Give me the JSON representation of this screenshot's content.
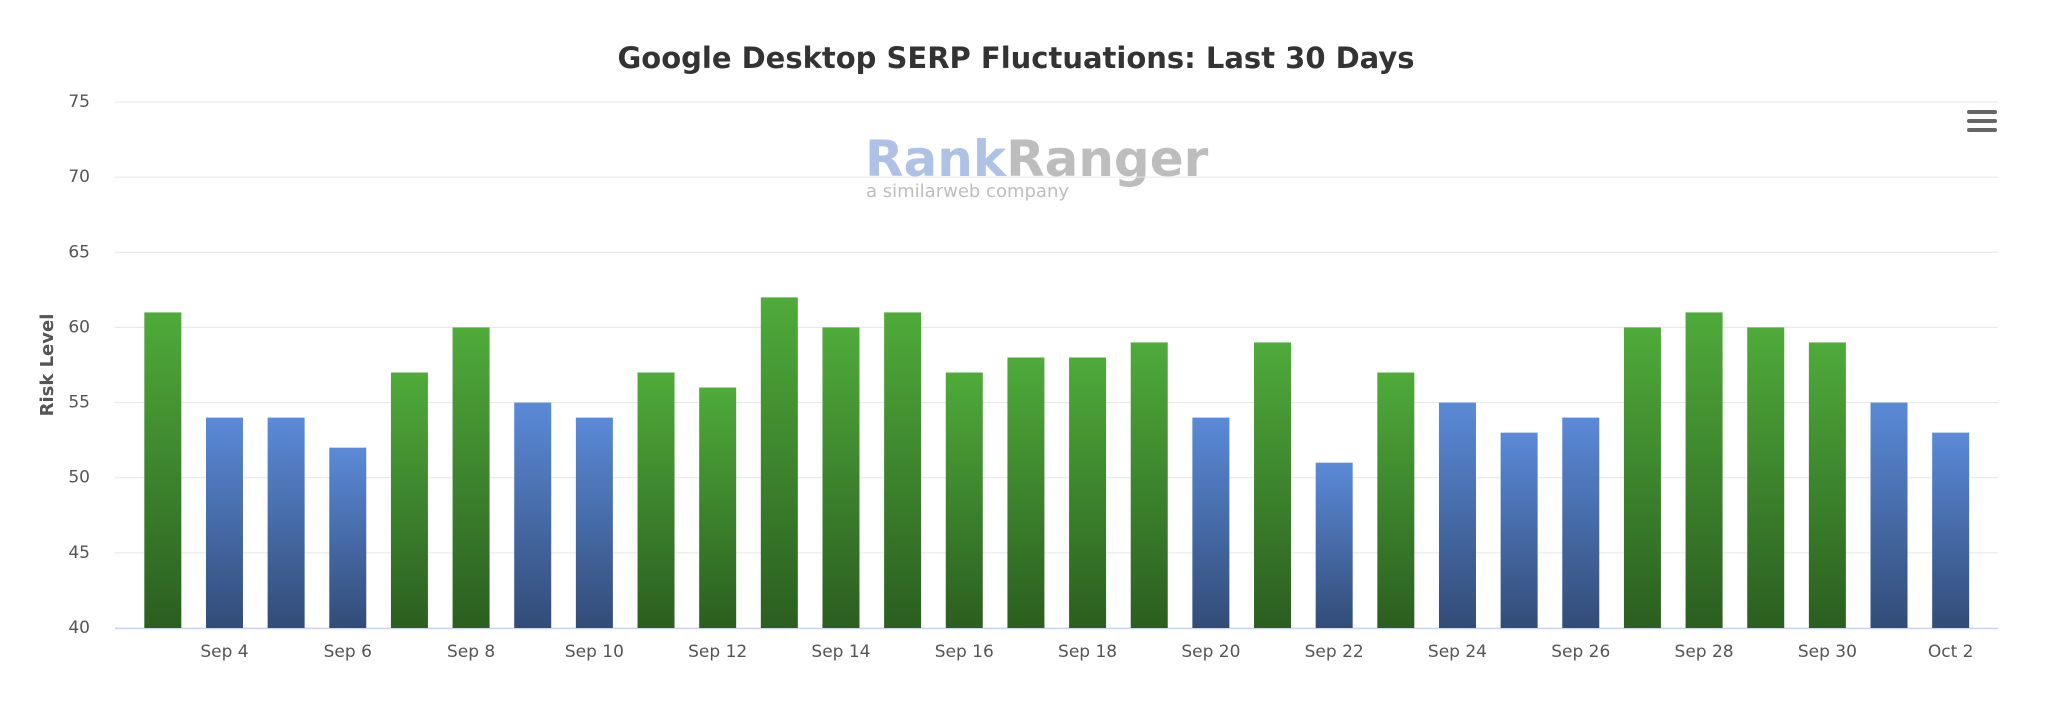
{
  "chart_data": {
    "type": "bar",
    "title": "Google Desktop SERP Fluctuations: Last 30 Days",
    "y_label": "Risk Level",
    "watermark": {
      "brand_first": "Rank",
      "brand_second": "Ranger",
      "tagline": "a similarweb company"
    },
    "categories": [
      null,
      "Sep 4",
      null,
      "Sep 6",
      null,
      "Sep 8",
      null,
      "Sep 10",
      null,
      "Sep 12",
      null,
      "Sep 14",
      null,
      "Sep 16",
      null,
      "Sep 18",
      null,
      "Sep 20",
      null,
      "Sep 22",
      null,
      "Sep 24",
      null,
      "Sep 26",
      null,
      "Sep 28",
      null,
      "Sep 30",
      null,
      "Oct 2"
    ],
    "values": [
      61,
      54,
      54,
      52,
      57,
      60,
      55,
      54,
      57,
      56,
      62,
      60,
      61,
      57,
      58,
      58,
      59,
      54,
      59,
      51,
      57,
      55,
      53,
      54,
      60,
      61,
      60,
      59,
      55,
      53
    ],
    "colors": [
      "#4fab3a",
      "#5b8ad8",
      "#5b8ad8",
      "#5b8ad8",
      "#4fab3a",
      "#4fab3a",
      "#5b8ad8",
      "#5b8ad8",
      "#4fab3a",
      "#4fab3a",
      "#4fab3a",
      "#4fab3a",
      "#4fab3a",
      "#4fab3a",
      "#4fab3a",
      "#4fab3a",
      "#4fab3a",
      "#5b8ad8",
      "#4fab3a",
      "#5b8ad8",
      "#4fab3a",
      "#5b8ad8",
      "#5b8ad8",
      "#5b8ad8",
      "#4fab3a",
      "#4fab3a",
      "#4fab3a",
      "#4fab3a",
      "#5b8ad8",
      "#5b8ad8"
    ],
    "ylim": [
      40,
      75
    ],
    "yticks": [
      40,
      45,
      50,
      55,
      60,
      65,
      70,
      75
    ],
    "grid": true
  }
}
